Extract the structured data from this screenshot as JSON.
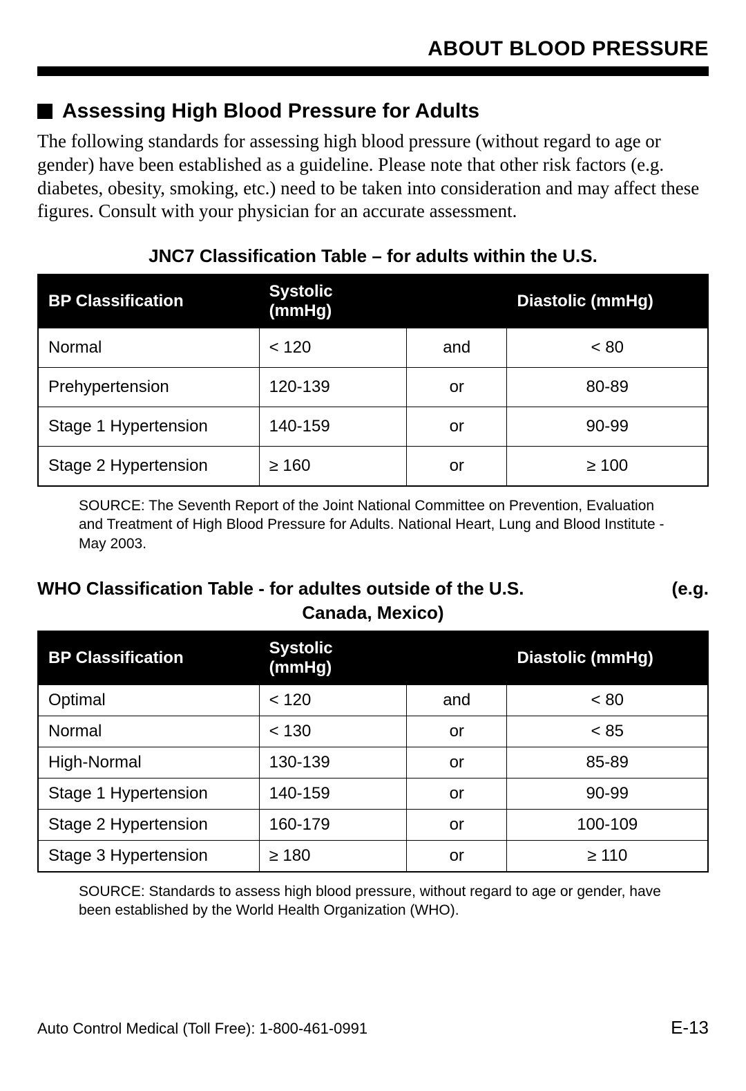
{
  "header": {
    "title": "ABOUT BLOOD PRESSURE"
  },
  "section": {
    "heading": "Assessing High Blood Pressure for Adults",
    "body": "The following standards for assessing high blood pressure (without regard to age or gender) have been established as a guideline. Please note that other risk factors (e.g. diabetes, obesity, smoking, etc.) need to be taken into consideration and may affect these figures. Consult with your physician for an accurate assessment."
  },
  "jnc7": {
    "title": "JNC7 Classification Table – for adults within the U.S.",
    "columns": [
      "BP Classification",
      "Systolic (mmHg)",
      "",
      "Diastolic (mmHg)"
    ],
    "rows": [
      [
        "Normal",
        "< 120",
        "and",
        "< 80"
      ],
      [
        "Prehypertension",
        "120-139",
        "or",
        "80-89"
      ],
      [
        "Stage 1 Hypertension",
        "140-159",
        "or",
        "90-99"
      ],
      [
        "Stage 2 Hypertension",
        "≥ 160",
        "or",
        "≥ 100"
      ]
    ],
    "source": "SOURCE: The Seventh Report of the Joint National Committee on Prevention, Evaluation and Treatment of High Blood Pressure for Adults. National Heart, Lung and Blood Institute - May 2003."
  },
  "who": {
    "title_left": "WHO Classification Table - for adultes outside of the U.S.",
    "title_right": "(e.g.",
    "title_line2": "Canada, Mexico)",
    "columns": [
      "BP Classification",
      "Systolic (mmHg)",
      "",
      "Diastolic (mmHg)"
    ],
    "rows": [
      [
        "Optimal",
        "< 120",
        "and",
        "< 80"
      ],
      [
        "Normal",
        "< 130",
        "or",
        "< 85"
      ],
      [
        "High-Normal",
        "130-139",
        "or",
        "85-89"
      ],
      [
        "Stage 1 Hypertension",
        "140-159",
        "or",
        "90-99"
      ],
      [
        "Stage 2 Hypertension",
        "160-179",
        "or",
        "100-109"
      ],
      [
        "Stage 3 Hypertension",
        "≥ 180",
        "or",
        "≥ 110"
      ]
    ],
    "source": "SOURCE: Standards to assess high blood pressure, without regard to age or gender, have been established by the World Health Organization (WHO)."
  },
  "footer": {
    "left": "Auto Control Medical (Toll Free): 1-800-461-0991",
    "right": "E-13"
  },
  "style": {
    "page_bg": "#ffffff",
    "text_color": "#000000",
    "header_bg": "#000000",
    "header_fg": "#ffffff",
    "border_color": "#000000"
  }
}
